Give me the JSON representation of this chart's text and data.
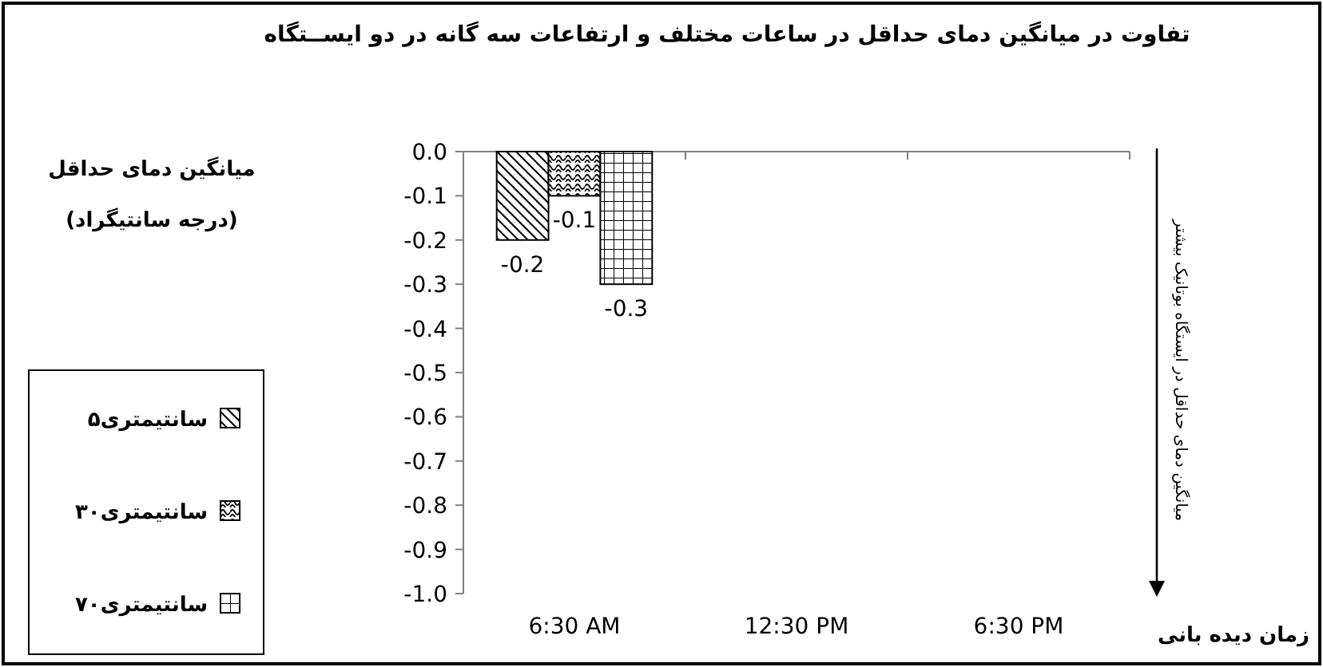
{
  "chart_data": {
    "type": "bar",
    "title": "تفاوت در میانگین دمای حداقل در ساعات مختلف و ارتفاعات سه گانه در دو ایســتگاه",
    "ylabel": "میانگین دمای حداقل\n(درجه سانتیگراد)",
    "xlabel": "زمان دیده بانی",
    "annotations": [
      "میانگین دمای حداقل در ایستگاه بوتانیک بیشتر"
    ],
    "categories": [
      "6:30 AM",
      "12:30 PM",
      "6:30 PM"
    ],
    "series": [
      {
        "name": "۵سانتیمتری",
        "color": "#000000",
        "values": [
          -0.2,
          null,
          null
        ]
      },
      {
        "name": "۳۰سانتیمتری",
        "color": "#000000",
        "values": [
          -0.1,
          null,
          null
        ]
      },
      {
        "name": "۷۰سانتیمتری",
        "color": "#000000",
        "values": [
          -0.3,
          null,
          null
        ]
      }
    ],
    "ylim": [
      -1.0,
      0.0
    ],
    "yticks": [
      {
        "value": 0,
        "label": "0.0"
      },
      {
        "value": -0.1,
        "label": "-0.1"
      },
      {
        "value": -0.2,
        "label": "-0.2"
      },
      {
        "value": -0.3,
        "label": "-0.3"
      },
      {
        "value": -0.4,
        "label": "-0.4"
      },
      {
        "value": -0.5,
        "label": "-0.5"
      },
      {
        "value": -0.6,
        "label": "-0.6"
      },
      {
        "value": -0.7,
        "label": "-0.7"
      },
      {
        "value": -0.8,
        "label": "-0.8"
      },
      {
        "value": -0.9,
        "label": "-0.9"
      },
      {
        "value": -1.0,
        "label": "-1.0"
      }
    ],
    "data_labels": true,
    "legend": "left",
    "grid": false
  }
}
